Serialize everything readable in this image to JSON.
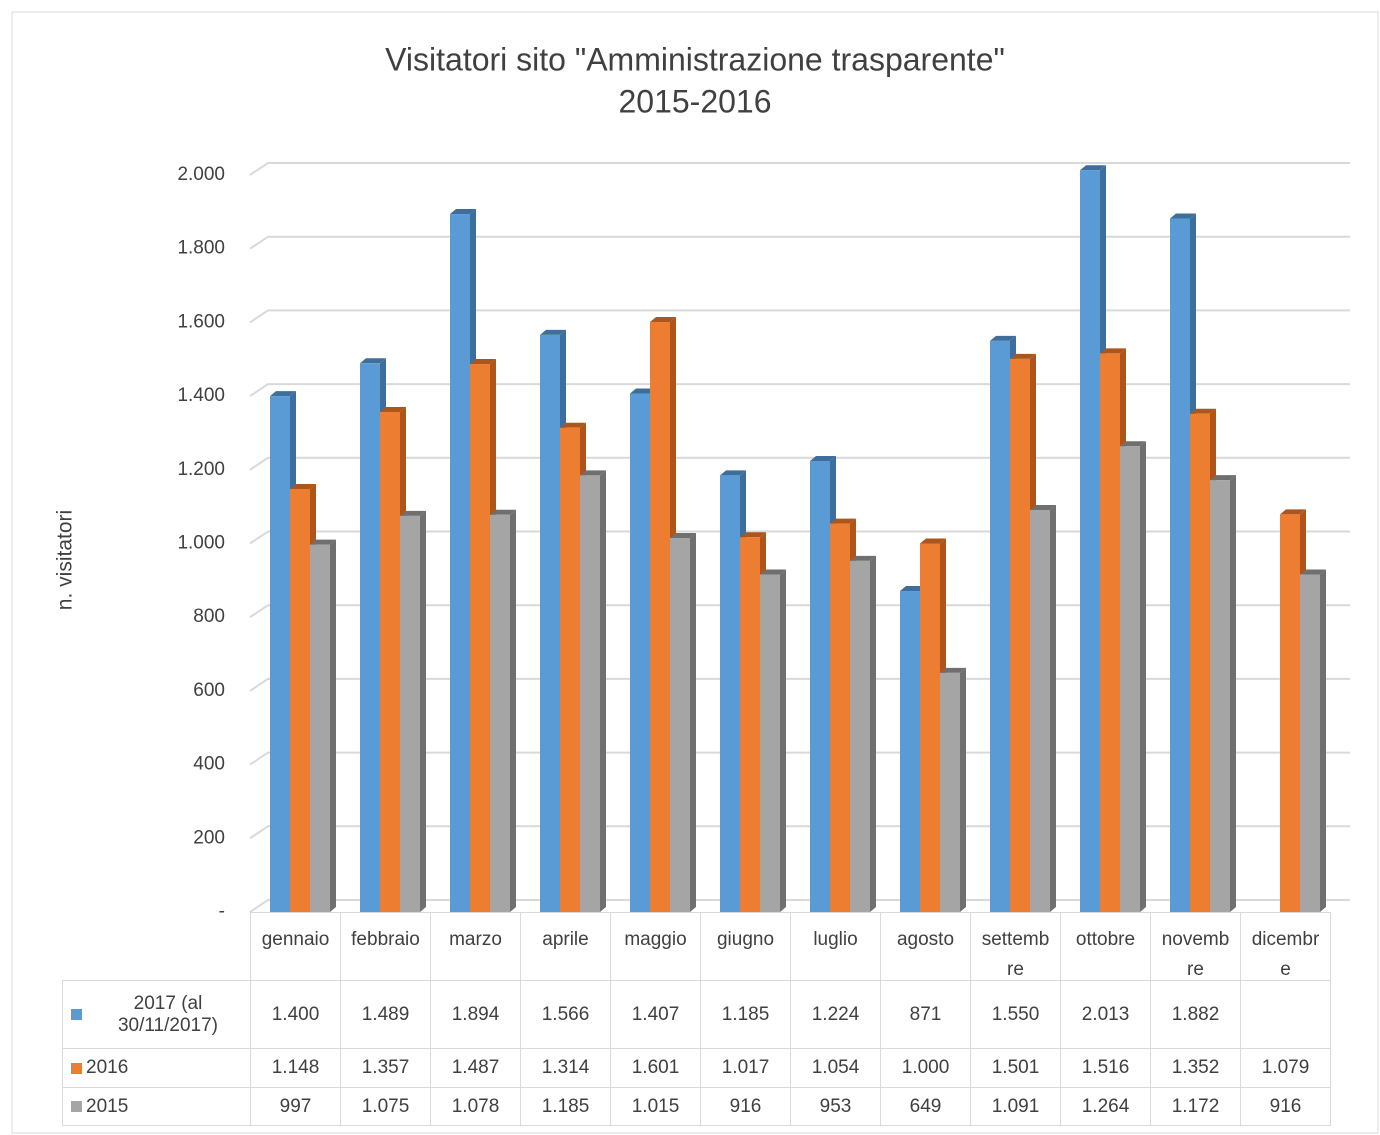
{
  "chart_data": {
    "type": "bar3d",
    "title": "Visitatori sito \"Amministrazione trasparente\"",
    "subtitle": "2015-2016",
    "y_label": "n. visitatori",
    "categories": [
      "gennaio",
      "febbraio",
      "marzo",
      "aprile",
      "maggio",
      "giugno",
      "luglio",
      "agosto",
      "settembre",
      "ottobre",
      "novembre",
      "dicembre"
    ],
    "series": [
      {
        "name": "2017 (al 30/11/2017)",
        "color": "#5b9bd5",
        "side": "#3e6f9c",
        "values": [
          1400,
          1489,
          1894,
          1566,
          1407,
          1185,
          1224,
          871,
          1550,
          2013,
          1882,
          null
        ],
        "value_labels": [
          "1.400",
          "1.489",
          "1.894",
          "1.566",
          "1.407",
          "1.185",
          "1.224",
          "871",
          "1.550",
          "2.013",
          "1.882",
          null
        ]
      },
      {
        "name": "2016",
        "color": "#ed7d31",
        "side": "#ad551b",
        "values": [
          1148,
          1357,
          1487,
          1314,
          1601,
          1017,
          1054,
          1000,
          1501,
          1516,
          1352,
          1079
        ],
        "value_labels": [
          "1.148",
          "1.357",
          "1.487",
          "1.314",
          "1.601",
          "1.017",
          "1.054",
          "1.000",
          "1.501",
          "1.516",
          "1.352",
          "1.079"
        ]
      },
      {
        "name": "2015",
        "color": "#a5a5a5",
        "side": "#6f6f6f",
        "values": [
          997,
          1075,
          1078,
          1185,
          1015,
          916,
          953,
          649,
          1091,
          1264,
          1172,
          916
        ],
        "value_labels": [
          "997",
          "1.075",
          "1.078",
          "1.185",
          "1.015",
          "916",
          "953",
          "649",
          "1.091",
          "1.264",
          "1.172",
          "916"
        ]
      }
    ],
    "ylim": [
      0,
      2000
    ],
    "yticks": [
      {
        "value": 0,
        "label": "-"
      },
      200,
      400,
      600,
      800,
      {
        "value": 1000,
        "label": "1.000"
      },
      {
        "value": 1200,
        "label": "1.200"
      },
      {
        "value": 1400,
        "label": "1.400"
      },
      {
        "value": 1600,
        "label": "1.600"
      },
      {
        "value": 1800,
        "label": "1.800"
      },
      {
        "value": 2000,
        "label": "2.000"
      }
    ],
    "grid": true
  }
}
